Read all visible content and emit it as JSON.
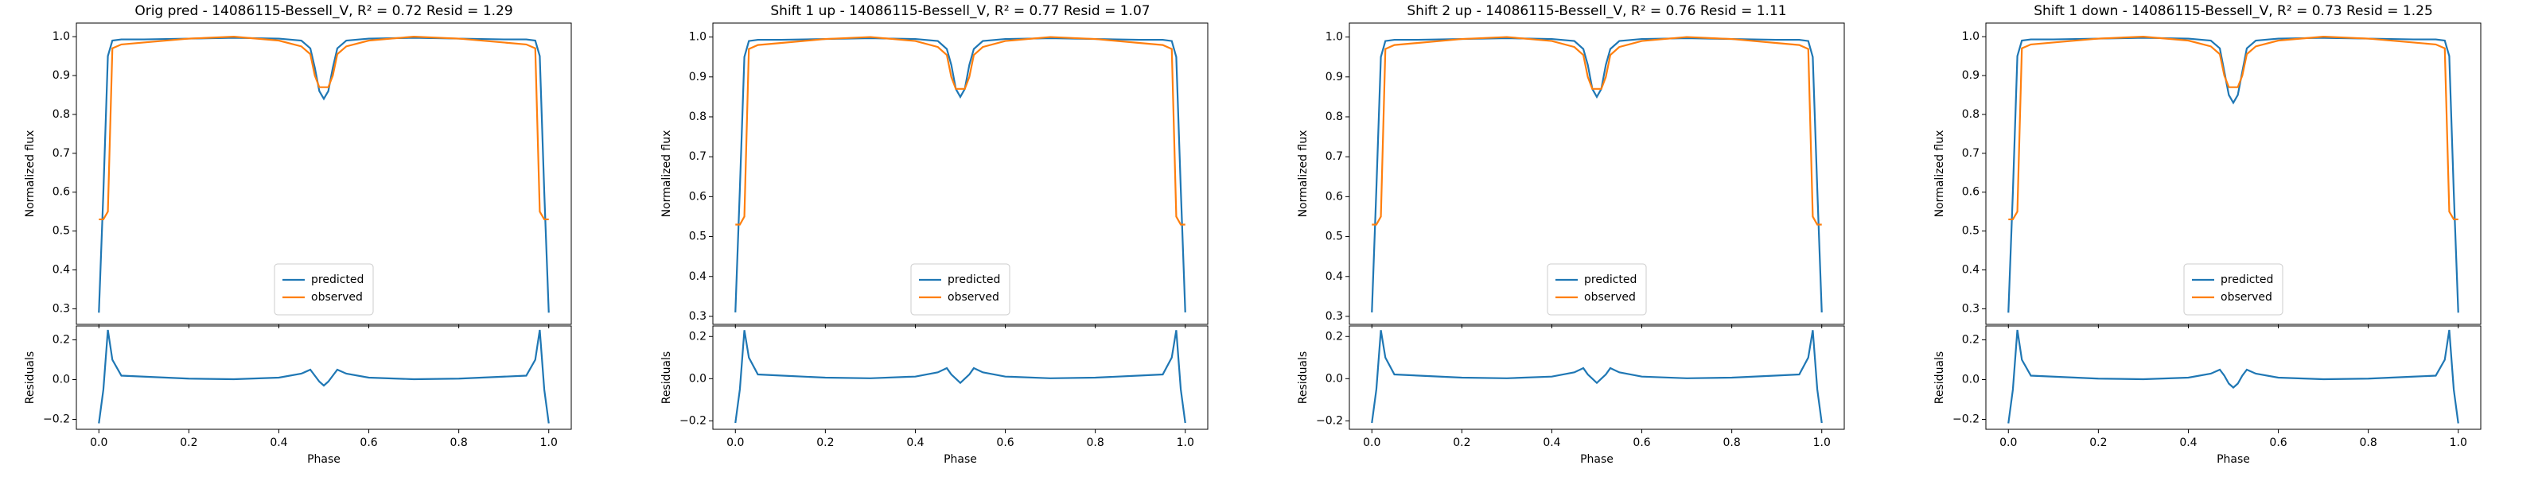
{
  "chart_data": [
    {
      "type": "line",
      "title": "Orig pred - 14086115-Bessell_V, R² = 0.72 Resid = 1.29",
      "ylabel": "Normalized flux",
      "x": [
        0,
        0.01,
        0.02,
        0.03,
        0.05,
        0.1,
        0.2,
        0.3,
        0.4,
        0.45,
        0.47,
        0.48,
        0.49,
        0.5,
        0.51,
        0.52,
        0.53,
        0.55,
        0.6,
        0.7,
        0.8,
        0.9,
        0.95,
        0.97,
        0.98,
        0.99,
        1.0
      ],
      "series": [
        {
          "name": "predicted",
          "color": "#1f77b4",
          "values": [
            0.29,
            0.6,
            0.95,
            0.99,
            0.993,
            0.993,
            0.995,
            0.997,
            0.995,
            0.99,
            0.97,
            0.92,
            0.86,
            0.84,
            0.86,
            0.92,
            0.97,
            0.99,
            0.995,
            0.997,
            0.995,
            0.993,
            0.993,
            0.99,
            0.95,
            0.6,
            0.29
          ]
        },
        {
          "name": "observed",
          "color": "#ff7f0e",
          "values": [
            0.53,
            0.53,
            0.55,
            0.97,
            0.98,
            0.985,
            0.995,
            1.0,
            0.99,
            0.975,
            0.955,
            0.9,
            0.87,
            0.87,
            0.87,
            0.9,
            0.955,
            0.975,
            0.99,
            1.0,
            0.995,
            0.985,
            0.98,
            0.97,
            0.55,
            0.53,
            0.53
          ]
        }
      ],
      "xlim": [
        -0.05,
        1.05
      ],
      "ylim": [
        0.26,
        1.035
      ],
      "yticks": [
        0.3,
        0.4,
        0.5,
        0.6,
        0.7,
        0.8,
        0.9,
        {
          "value": 1.0,
          "label": "1.0"
        }
      ],
      "legend": "lower center"
    },
    {
      "type": "line",
      "xlabel": "Phase",
      "ylabel": "Residuals",
      "color": "#1f77b4",
      "x": [
        0,
        0.01,
        0.02,
        0.03,
        0.05,
        0.1,
        0.2,
        0.3,
        0.4,
        0.45,
        0.47,
        0.48,
        0.49,
        0.5,
        0.51,
        0.52,
        0.53,
        0.55,
        0.6,
        0.7,
        0.8,
        0.9,
        0.95,
        0.97,
        0.98,
        0.99,
        1.0
      ],
      "values": [
        -0.22,
        -0.05,
        0.25,
        0.1,
        0.02,
        0.015,
        0.005,
        0.002,
        0.01,
        0.03,
        0.05,
        0.02,
        -0.01,
        -0.03,
        -0.01,
        0.02,
        0.05,
        0.03,
        0.01,
        0.002,
        0.005,
        0.015,
        0.02,
        0.1,
        0.25,
        -0.05,
        -0.22
      ],
      "xlim": [
        -0.05,
        1.05
      ],
      "ylim": [
        -0.25,
        0.27
      ],
      "xticks": [
        {
          "value": 0,
          "label": "0.0"
        },
        0.2,
        0.4,
        0.6,
        0.8,
        {
          "value": 1,
          "label": "1.0"
        }
      ],
      "yticks": [
        {
          "value": -0.2,
          "label": "−0.2"
        },
        {
          "value": 0,
          "label": "0.0"
        },
        0.2
      ]
    },
    {
      "type": "line",
      "title": "Shift 1 up - 14086115-Bessell_V, R² = 0.77 Resid = 1.07",
      "ylabel": "Normalized flux",
      "x": [
        0,
        0.01,
        0.02,
        0.03,
        0.05,
        0.1,
        0.2,
        0.3,
        0.4,
        0.45,
        0.47,
        0.48,
        0.49,
        0.5,
        0.51,
        0.52,
        0.53,
        0.55,
        0.6,
        0.7,
        0.8,
        0.9,
        0.95,
        0.97,
        0.98,
        0.99,
        1.0
      ],
      "series": [
        {
          "name": "predicted",
          "color": "#1f77b4",
          "values": [
            0.31,
            0.62,
            0.95,
            0.99,
            0.993,
            0.993,
            0.995,
            0.997,
            0.995,
            0.99,
            0.97,
            0.93,
            0.87,
            0.85,
            0.87,
            0.93,
            0.97,
            0.99,
            0.995,
            0.997,
            0.995,
            0.993,
            0.993,
            0.99,
            0.95,
            0.62,
            0.31
          ]
        },
        {
          "name": "observed",
          "color": "#ff7f0e",
          "values": [
            0.53,
            0.53,
            0.55,
            0.97,
            0.98,
            0.985,
            0.995,
            1.0,
            0.99,
            0.975,
            0.955,
            0.9,
            0.87,
            0.87,
            0.87,
            0.9,
            0.955,
            0.975,
            0.99,
            1.0,
            0.995,
            0.985,
            0.98,
            0.97,
            0.55,
            0.53,
            0.53
          ]
        }
      ],
      "xlim": [
        -0.05,
        1.05
      ],
      "ylim": [
        0.28,
        1.035
      ],
      "yticks": [
        0.3,
        0.4,
        0.5,
        0.6,
        0.7,
        0.8,
        0.9,
        {
          "value": 1.0,
          "label": "1.0"
        }
      ],
      "legend": "lower center"
    },
    {
      "type": "line",
      "xlabel": "Phase",
      "ylabel": "Residuals",
      "color": "#1f77b4",
      "x": [
        0,
        0.01,
        0.02,
        0.03,
        0.05,
        0.1,
        0.2,
        0.3,
        0.4,
        0.45,
        0.47,
        0.48,
        0.49,
        0.5,
        0.51,
        0.52,
        0.53,
        0.55,
        0.6,
        0.7,
        0.8,
        0.9,
        0.95,
        0.97,
        0.98,
        0.99,
        1.0
      ],
      "values": [
        -0.21,
        -0.05,
        0.23,
        0.1,
        0.02,
        0.015,
        0.005,
        0.002,
        0.01,
        0.03,
        0.05,
        0.02,
        0.0,
        -0.02,
        0.0,
        0.02,
        0.05,
        0.03,
        0.01,
        0.002,
        0.005,
        0.015,
        0.02,
        0.1,
        0.23,
        -0.05,
        -0.21
      ],
      "xlim": [
        -0.05,
        1.05
      ],
      "ylim": [
        -0.24,
        0.25
      ],
      "xticks": [
        {
          "value": 0,
          "label": "0.0"
        },
        0.2,
        0.4,
        0.6,
        0.8,
        {
          "value": 1,
          "label": "1.0"
        }
      ],
      "yticks": [
        {
          "value": -0.2,
          "label": "−0.2"
        },
        {
          "value": 0,
          "label": "0.0"
        },
        0.2
      ]
    },
    {
      "type": "line",
      "title": "Shift 2 up - 14086115-Bessell_V, R² = 0.76 Resid = 1.11",
      "ylabel": "Normalized flux",
      "x": [
        0,
        0.01,
        0.02,
        0.03,
        0.05,
        0.1,
        0.2,
        0.3,
        0.4,
        0.45,
        0.47,
        0.48,
        0.49,
        0.5,
        0.51,
        0.52,
        0.53,
        0.55,
        0.6,
        0.7,
        0.8,
        0.9,
        0.95,
        0.97,
        0.98,
        0.99,
        1.0
      ],
      "series": [
        {
          "name": "predicted",
          "color": "#1f77b4",
          "values": [
            0.31,
            0.62,
            0.95,
            0.99,
            0.993,
            0.993,
            0.995,
            0.997,
            0.995,
            0.99,
            0.97,
            0.93,
            0.87,
            0.85,
            0.87,
            0.93,
            0.97,
            0.99,
            0.995,
            0.997,
            0.995,
            0.993,
            0.993,
            0.99,
            0.95,
            0.62,
            0.31
          ]
        },
        {
          "name": "observed",
          "color": "#ff7f0e",
          "values": [
            0.53,
            0.53,
            0.55,
            0.97,
            0.98,
            0.985,
            0.995,
            1.0,
            0.99,
            0.975,
            0.955,
            0.9,
            0.87,
            0.87,
            0.87,
            0.9,
            0.955,
            0.975,
            0.99,
            1.0,
            0.995,
            0.985,
            0.98,
            0.97,
            0.55,
            0.53,
            0.53
          ]
        }
      ],
      "xlim": [
        -0.05,
        1.05
      ],
      "ylim": [
        0.28,
        1.035
      ],
      "yticks": [
        0.3,
        0.4,
        0.5,
        0.6,
        0.7,
        0.8,
        0.9,
        {
          "value": 1.0,
          "label": "1.0"
        }
      ],
      "legend": "lower center"
    },
    {
      "type": "line",
      "xlabel": "Phase",
      "ylabel": "Residuals",
      "color": "#1f77b4",
      "x": [
        0,
        0.01,
        0.02,
        0.03,
        0.05,
        0.1,
        0.2,
        0.3,
        0.4,
        0.45,
        0.47,
        0.48,
        0.49,
        0.5,
        0.51,
        0.52,
        0.53,
        0.55,
        0.6,
        0.7,
        0.8,
        0.9,
        0.95,
        0.97,
        0.98,
        0.99,
        1.0
      ],
      "values": [
        -0.21,
        -0.05,
        0.23,
        0.1,
        0.02,
        0.015,
        0.005,
        0.002,
        0.01,
        0.03,
        0.05,
        0.02,
        0.0,
        -0.02,
        0.0,
        0.02,
        0.05,
        0.03,
        0.01,
        0.002,
        0.005,
        0.015,
        0.02,
        0.1,
        0.23,
        -0.05,
        -0.21
      ],
      "xlim": [
        -0.05,
        1.05
      ],
      "ylim": [
        -0.24,
        0.25
      ],
      "xticks": [
        {
          "value": 0,
          "label": "0.0"
        },
        0.2,
        0.4,
        0.6,
        0.8,
        {
          "value": 1,
          "label": "1.0"
        }
      ],
      "yticks": [
        {
          "value": -0.2,
          "label": "−0.2"
        },
        {
          "value": 0,
          "label": "0.0"
        },
        0.2
      ]
    },
    {
      "type": "line",
      "title": "Shift 1 down - 14086115-Bessell_V, R² = 0.73 Resid = 1.25",
      "ylabel": "Normalized flux",
      "x": [
        0,
        0.01,
        0.02,
        0.03,
        0.05,
        0.1,
        0.2,
        0.3,
        0.4,
        0.45,
        0.47,
        0.48,
        0.49,
        0.5,
        0.51,
        0.52,
        0.53,
        0.55,
        0.6,
        0.7,
        0.8,
        0.9,
        0.95,
        0.97,
        0.98,
        0.99,
        1.0
      ],
      "series": [
        {
          "name": "predicted",
          "color": "#1f77b4",
          "values": [
            0.29,
            0.6,
            0.95,
            0.99,
            0.993,
            0.993,
            0.995,
            0.997,
            0.995,
            0.99,
            0.97,
            0.91,
            0.85,
            0.83,
            0.85,
            0.91,
            0.97,
            0.99,
            0.995,
            0.997,
            0.995,
            0.993,
            0.993,
            0.99,
            0.95,
            0.6,
            0.29
          ]
        },
        {
          "name": "observed",
          "color": "#ff7f0e",
          "values": [
            0.53,
            0.53,
            0.55,
            0.97,
            0.98,
            0.985,
            0.995,
            1.0,
            0.99,
            0.975,
            0.955,
            0.9,
            0.87,
            0.87,
            0.87,
            0.9,
            0.955,
            0.975,
            0.99,
            1.0,
            0.995,
            0.985,
            0.98,
            0.97,
            0.55,
            0.53,
            0.53
          ]
        }
      ],
      "xlim": [
        -0.05,
        1.05
      ],
      "ylim": [
        0.26,
        1.035
      ],
      "yticks": [
        0.3,
        0.4,
        0.5,
        0.6,
        0.7,
        0.8,
        0.9,
        {
          "value": 1.0,
          "label": "1.0"
        }
      ],
      "legend": "lower center"
    },
    {
      "type": "line",
      "xlabel": "Phase",
      "ylabel": "Residuals",
      "color": "#1f77b4",
      "x": [
        0,
        0.01,
        0.02,
        0.03,
        0.05,
        0.1,
        0.2,
        0.3,
        0.4,
        0.45,
        0.47,
        0.48,
        0.49,
        0.5,
        0.51,
        0.52,
        0.53,
        0.55,
        0.6,
        0.7,
        0.8,
        0.9,
        0.95,
        0.97,
        0.98,
        0.99,
        1.0
      ],
      "values": [
        -0.22,
        -0.05,
        0.25,
        0.1,
        0.02,
        0.015,
        0.005,
        0.002,
        0.01,
        0.03,
        0.05,
        0.02,
        -0.02,
        -0.04,
        -0.02,
        0.02,
        0.05,
        0.03,
        0.01,
        0.002,
        0.005,
        0.015,
        0.02,
        0.1,
        0.25,
        -0.05,
        -0.22
      ],
      "xlim": [
        -0.05,
        1.05
      ],
      "ylim": [
        -0.25,
        0.27
      ],
      "xticks": [
        {
          "value": 0,
          "label": "0.0"
        },
        0.2,
        0.4,
        0.6,
        0.8,
        {
          "value": 1,
          "label": "1.0"
        }
      ],
      "yticks": [
        {
          "value": -0.2,
          "label": "−0.2"
        },
        {
          "value": 0,
          "label": "0.0"
        },
        0.2
      ]
    }
  ]
}
